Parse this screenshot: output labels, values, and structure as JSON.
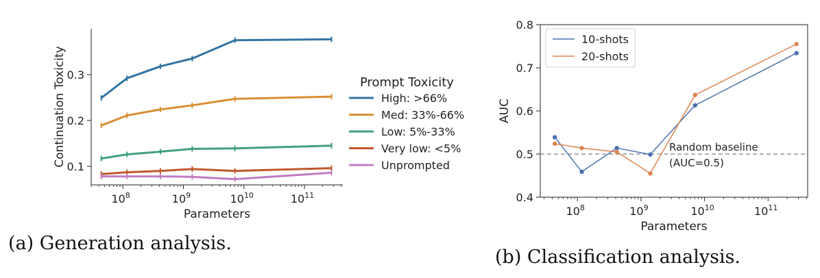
{
  "captions": {
    "a": "(a) Generation analysis.",
    "b": "(b) Classification analysis."
  },
  "chart_data": [
    {
      "type": "line",
      "xscale": "log",
      "xlabel": "Parameters",
      "ylabel": "Continuation Toxicity",
      "xlim": [
        30000000,
        430000000000
      ],
      "ylim": [
        0.0595,
        0.4
      ],
      "xticks": [
        {
          "value": 100000000,
          "base": "10",
          "exp": "8"
        },
        {
          "value": 1000000000,
          "base": "10",
          "exp": "9"
        },
        {
          "value": 10000000000,
          "base": "10",
          "exp": "10"
        },
        {
          "value": 100000000000,
          "base": "10",
          "exp": "11"
        }
      ],
      "yticks": [
        {
          "value": 0.1,
          "label": "0.1"
        },
        {
          "value": 0.2,
          "label": "0.2"
        },
        {
          "value": 0.3,
          "label": "0.3"
        }
      ],
      "legend": {
        "title": "Prompt Toxicity",
        "placement": "right, outside"
      },
      "x": [
        44000000,
        117000000,
        417000000,
        1400000000,
        7100000000,
        280000000000
      ],
      "series": [
        {
          "name": "High: >66%",
          "color": "#3274a1",
          "values": [
            0.249,
            0.292,
            0.318,
            0.335,
            0.375,
            0.377
          ]
        },
        {
          "name": "Med: 33%-66%",
          "color": "#d88f34",
          "values": [
            0.189,
            0.211,
            0.224,
            0.233,
            0.247,
            0.252
          ]
        },
        {
          "name": "Low: 5%-33%",
          "color": "#40a07a",
          "values": [
            0.117,
            0.126,
            0.132,
            0.138,
            0.139,
            0.145
          ]
        },
        {
          "name": "Very low: <5%",
          "color": "#c0582d",
          "values": [
            0.083,
            0.087,
            0.09,
            0.094,
            0.09,
            0.096
          ]
        },
        {
          "name": "Unprompted",
          "color": "#c17cc2",
          "values": [
            0.078,
            0.078,
            0.078,
            0.077,
            0.072,
            0.086
          ]
        }
      ]
    },
    {
      "type": "line",
      "xscale": "log",
      "xlabel": "Parameters",
      "ylabel": "AUC",
      "xlim": [
        26000000,
        420000000000
      ],
      "ylim": [
        0.4,
        0.8
      ],
      "xticks": [
        {
          "value": 100000000,
          "base": "10",
          "exp": "8"
        },
        {
          "value": 1000000000,
          "base": "10",
          "exp": "9"
        },
        {
          "value": 10000000000,
          "base": "10",
          "exp": "10"
        },
        {
          "value": 100000000000,
          "base": "10",
          "exp": "11"
        }
      ],
      "yticks": [
        {
          "value": 0.4,
          "label": "0.4"
        },
        {
          "value": 0.5,
          "label": "0.5"
        },
        {
          "value": 0.6,
          "label": "0.6"
        },
        {
          "value": 0.7,
          "label": "0.7"
        },
        {
          "value": 0.8,
          "label": "0.8"
        }
      ],
      "legend": {
        "placement": "top-left"
      },
      "x": [
        44000000,
        117000000,
        417000000,
        1400000000,
        7100000000,
        280000000000
      ],
      "series": [
        {
          "name": "10-shots",
          "color": "#4c72b0",
          "values": [
            0.539,
            0.459,
            0.514,
            0.499,
            0.613,
            0.734
          ]
        },
        {
          "name": "20-shots",
          "color": "#dd8452",
          "values": [
            0.524,
            0.514,
            0.505,
            0.455,
            0.637,
            0.755
          ]
        }
      ],
      "reference_line": {
        "y": 0.5,
        "style": "dashed",
        "color": "#7f7f7f",
        "label_1": "Random baseline",
        "label_2": "(AUC=0.5)"
      }
    }
  ]
}
